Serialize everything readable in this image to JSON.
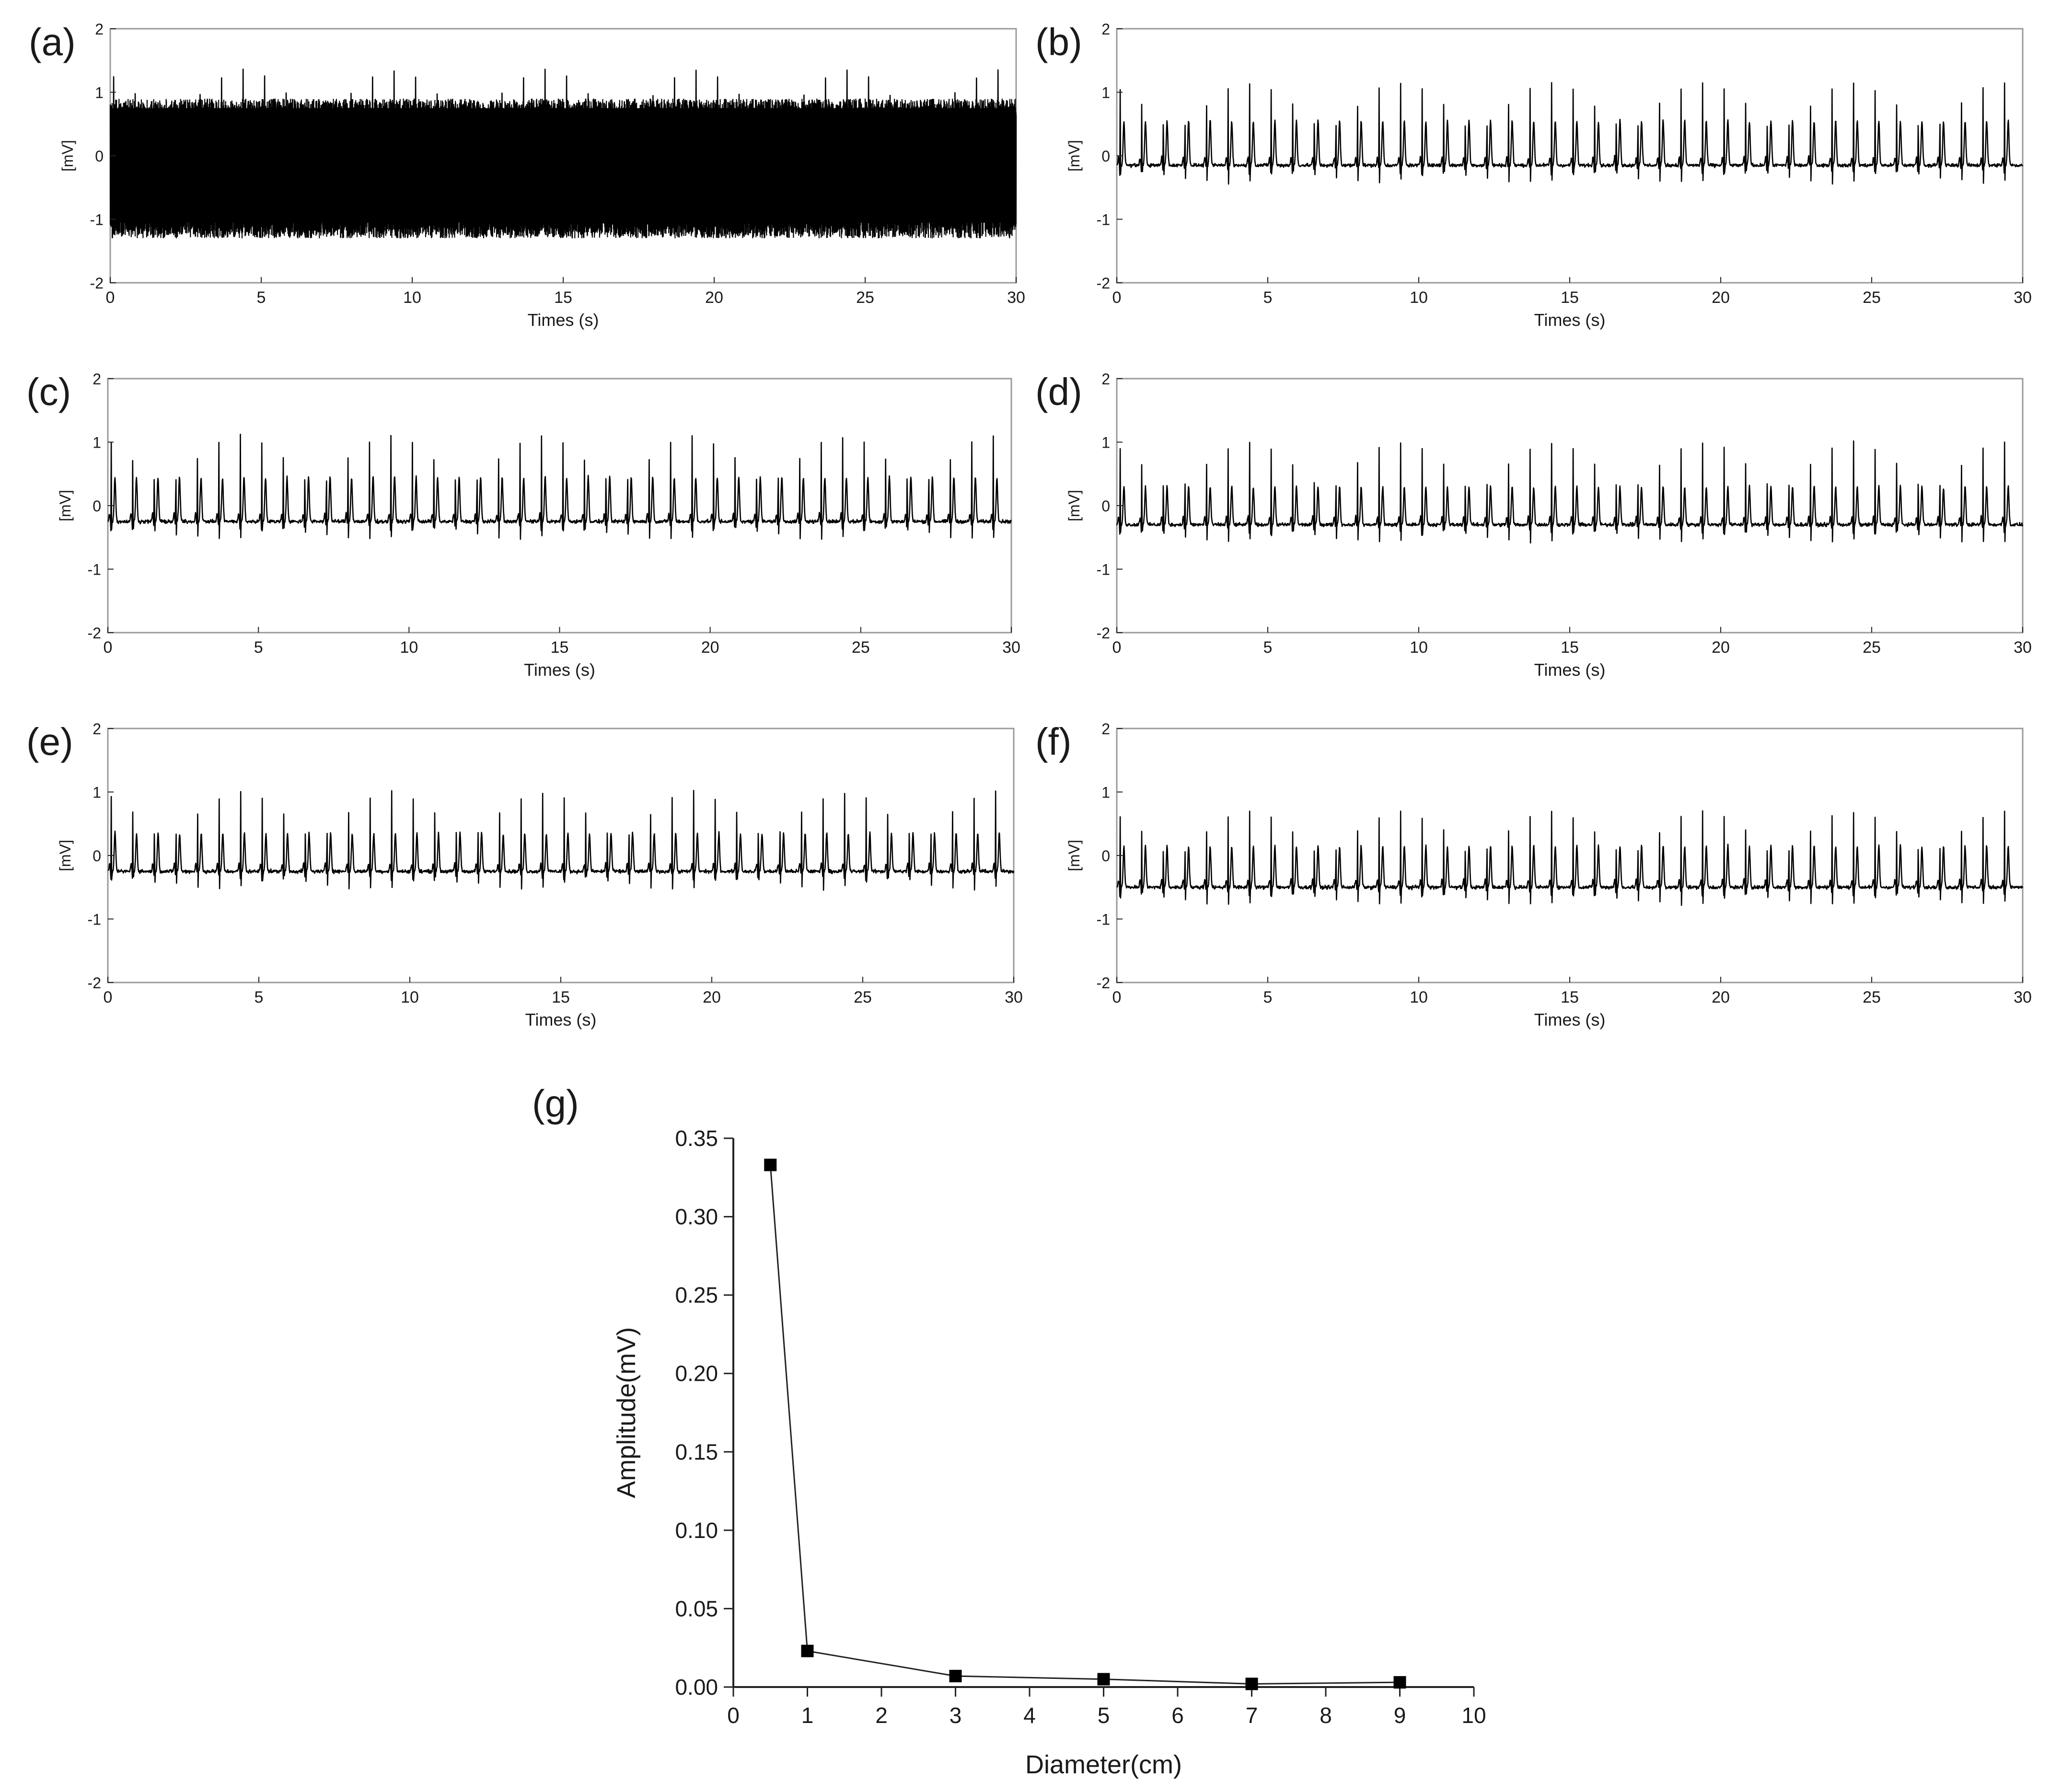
{
  "colors": {
    "trace": "#000000",
    "axis": "#222222",
    "frame": "#9a9a9a",
    "text": "#1a1a1a"
  },
  "chart_data": [
    {
      "id": "a",
      "panel_label": "(a)",
      "type": "line",
      "xlabel": "Times (s)",
      "ylabel": "[mV]",
      "xlim": [
        0,
        30
      ],
      "ylim": [
        -2,
        2
      ],
      "xticks": [
        0,
        5,
        10,
        15,
        20,
        25,
        30
      ],
      "yticks": [
        -2,
        -1,
        0,
        1,
        2
      ],
      "signal": {
        "kind": "noisy-ecg",
        "beats_in_window": 42,
        "baseline_mV": -0.1,
        "r_peak_mV": 1.4,
        "t_wave_mV": 0.5,
        "noise_band_mV": [
          -1.3,
          0.9
        ]
      }
    },
    {
      "id": "b",
      "panel_label": "(b)",
      "type": "line",
      "xlabel": "Times (s)",
      "ylabel": "[mV]",
      "xlim": [
        0,
        30
      ],
      "ylim": [
        -2,
        2
      ],
      "xticks": [
        0,
        5,
        10,
        15,
        20,
        25,
        30
      ],
      "yticks": [
        -2,
        -1,
        0,
        1,
        2
      ],
      "signal": {
        "kind": "ecg",
        "beats_in_window": 42,
        "baseline_mV": -0.15,
        "r_peak_mV": 1.2,
        "t_wave_mV": 0.55
      }
    },
    {
      "id": "c",
      "panel_label": "(c)",
      "type": "line",
      "xlabel": "Times (s)",
      "ylabel": "[mV]",
      "xlim": [
        0,
        30
      ],
      "ylim": [
        -2,
        2
      ],
      "xticks": [
        0,
        5,
        10,
        15,
        20,
        25,
        30
      ],
      "yticks": [
        -2,
        -1,
        0,
        1,
        2
      ],
      "signal": {
        "kind": "ecg",
        "beats_in_window": 42,
        "baseline_mV": -0.25,
        "r_peak_mV": 1.15,
        "t_wave_mV": 0.45
      }
    },
    {
      "id": "d",
      "panel_label": "(d)",
      "type": "line",
      "xlabel": "Times (s)",
      "ylabel": "[mV]",
      "xlim": [
        0,
        30
      ],
      "ylim": [
        -2,
        2
      ],
      "xticks": [
        0,
        5,
        10,
        15,
        20,
        25,
        30
      ],
      "yticks": [
        -2,
        -1,
        0,
        1,
        2
      ],
      "signal": {
        "kind": "ecg",
        "beats_in_window": 42,
        "baseline_mV": -0.3,
        "r_peak_mV": 1.05,
        "t_wave_mV": 0.3
      }
    },
    {
      "id": "e",
      "panel_label": "(e)",
      "type": "line",
      "xlabel": "Times (s)",
      "ylabel": "[mV]",
      "xlim": [
        0,
        30
      ],
      "ylim": [
        -2,
        2
      ],
      "xticks": [
        0,
        5,
        10,
        15,
        20,
        25,
        30
      ],
      "yticks": [
        -2,
        -1,
        0,
        1,
        2
      ],
      "signal": {
        "kind": "ecg",
        "beats_in_window": 42,
        "baseline_mV": -0.25,
        "r_peak_mV": 1.05,
        "t_wave_mV": 0.35
      }
    },
    {
      "id": "f",
      "panel_label": "(f)",
      "type": "line",
      "xlabel": "Times (s)",
      "ylabel": "[mV]",
      "xlim": [
        0,
        30
      ],
      "ylim": [
        -2,
        2
      ],
      "xticks": [
        0,
        5,
        10,
        15,
        20,
        25,
        30
      ],
      "yticks": [
        -2,
        -1,
        0,
        1,
        2
      ],
      "signal": {
        "kind": "ecg",
        "beats_in_window": 42,
        "baseline_mV": -0.5,
        "r_peak_mV": 0.75,
        "t_wave_mV": 0.15
      }
    },
    {
      "id": "g",
      "panel_label": "(g)",
      "type": "line",
      "xlabel": "Diameter(cm)",
      "ylabel": "Amplitude(mV)",
      "xlim": [
        0,
        10
      ],
      "ylim": [
        0,
        0.35
      ],
      "xticks": [
        0,
        1,
        2,
        3,
        4,
        5,
        6,
        7,
        8,
        9,
        10
      ],
      "yticks": [
        0,
        0.05,
        0.1,
        0.15,
        0.2,
        0.25,
        0.3,
        0.35
      ],
      "ytick_labels": [
        "0.00",
        "0.05",
        "0.10",
        "0.15",
        "0.20",
        "0.25",
        "0.30",
        "0.35"
      ],
      "x": [
        0.5,
        1,
        3,
        5,
        7,
        9
      ],
      "y": [
        0.333,
        0.023,
        0.007,
        0.005,
        0.002,
        0.003
      ],
      "marker": "square"
    }
  ]
}
